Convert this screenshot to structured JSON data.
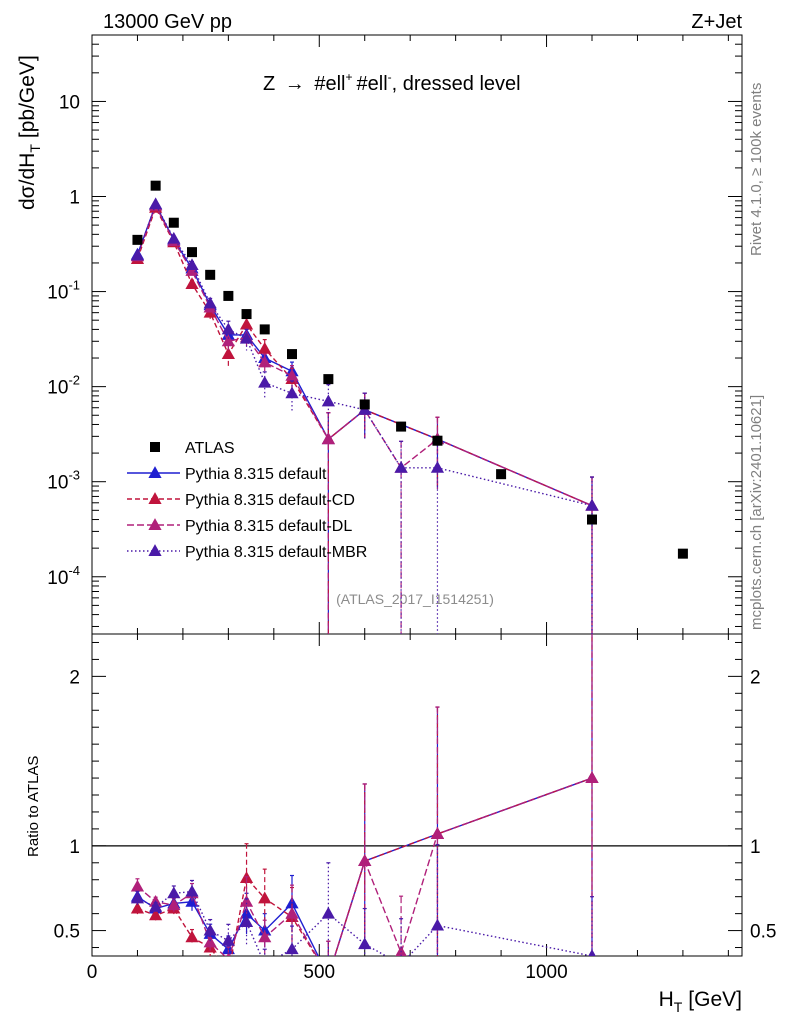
{
  "header": {
    "left": "13000 GeV pp",
    "right": "Z+Jet"
  },
  "side_labels": {
    "rivet": "Rivet 4.1.0, ≥ 100k events",
    "mcplots": "mcplots.cern.ch [arXiv:2401.10621]"
  },
  "chart_data": {
    "type": "scatter",
    "title": "Z → #ell+ #ell-, dressed level",
    "title_parts": {
      "z": "Z",
      "arrow": "→",
      "l1": "#ell",
      "s1": "+",
      "l2": "#ell",
      "s2": "-",
      "rest": ", dressed level"
    },
    "analysis_tag": "(ATLAS_2017_I1514251)",
    "xlabel": "H_T [GeV]",
    "xlabel_parts": {
      "h": "H",
      "sub": "T",
      "unit": "[GeV]"
    },
    "ylabel": "dσ/dH_T [pb/GeV]",
    "ylabel_parts": {
      "main": "dσ/dH",
      "sub": "T",
      "unit": "[pb/GeV]"
    },
    "ratio_ylabel": "Ratio to ATLAS",
    "xlim": [
      0,
      1430
    ],
    "ylim": [
      2.5e-05,
      50
    ],
    "ratio_ylim": [
      0.35,
      2.25
    ],
    "x_ticks": [
      0,
      500,
      1000
    ],
    "x_tick_labels": [
      "0",
      "500",
      "1000"
    ],
    "y_tick_labels": [
      {
        "base": "10",
        "exp": "-4"
      },
      {
        "base": "10",
        "exp": "-3"
      },
      {
        "base": "10",
        "exp": "-2"
      },
      {
        "base": "10",
        "exp": "-1"
      },
      {
        "base": "1",
        "exp": ""
      },
      {
        "base": "10",
        "exp": ""
      }
    ],
    "ratio_ticks": [
      0.5,
      1,
      2
    ],
    "ratio_tick_labels": [
      "0.5",
      "1",
      "2"
    ],
    "legend_position": "lower-left",
    "data": {
      "name": "ATLAS",
      "x": [
        100,
        140,
        180,
        220,
        260,
        300,
        340,
        380,
        440,
        520,
        600,
        680,
        760,
        900,
        1100,
        1300
      ],
      "y": [
        0.35,
        1.3,
        0.53,
        0.26,
        0.15,
        0.09,
        0.058,
        0.04,
        0.022,
        0.012,
        0.0065,
        0.0038,
        0.0027,
        0.0012,
        0.0004,
        0.000175
      ]
    },
    "series": [
      {
        "name": "Pythia 8.315 default",
        "color": "#1f1fd1",
        "dash": "",
        "x": [
          100,
          140,
          180,
          220,
          260,
          300,
          340,
          380,
          440,
          520,
          600,
          760,
          1100
        ],
        "y": [
          0.245,
          0.82,
          0.35,
          0.175,
          0.072,
          0.035,
          0.035,
          0.02,
          0.0145,
          0.0028,
          0.0057,
          0.0028,
          0.00056
        ],
        "err_frac": [
          0.06,
          0.04,
          0.06,
          0.08,
          0.12,
          0.2,
          0.2,
          0.2,
          0.25,
          0.9,
          0.5,
          0.7,
          1.0
        ],
        "ratio": [
          0.7,
          0.63,
          0.66,
          0.67,
          0.48,
          0.39,
          0.6,
          0.5,
          0.66,
          0.23,
          0.91,
          1.07,
          1.4
        ]
      },
      {
        "name": "Pythia 8.315 default-CD",
        "color": "#c0143c",
        "dash": "5,3",
        "x": [
          100,
          140,
          180,
          220,
          260,
          300,
          340,
          380,
          440,
          520,
          600,
          760,
          1100
        ],
        "y": [
          0.22,
          0.76,
          0.33,
          0.12,
          0.06,
          0.022,
          0.045,
          0.025,
          0.012,
          0.0028,
          0.0057,
          0.0028,
          0.00056
        ],
        "err_frac": [
          0.07,
          0.05,
          0.07,
          0.1,
          0.14,
          0.25,
          0.25,
          0.25,
          0.3,
          0.9,
          0.5,
          0.7,
          1.0
        ],
        "ratio": [
          0.63,
          0.59,
          0.63,
          0.46,
          0.4,
          0.25,
          0.81,
          0.69,
          0.58,
          0.23,
          0.91,
          1.07,
          1.4
        ]
      },
      {
        "name": "Pythia 8.315 default-DL",
        "color": "#b0207a",
        "dash": "7,3",
        "x": [
          100,
          140,
          180,
          220,
          260,
          300,
          340,
          380,
          440,
          520,
          600,
          680,
          760,
          1100
        ],
        "y": [
          0.235,
          0.8,
          0.34,
          0.165,
          0.068,
          0.03,
          0.033,
          0.018,
          0.013,
          0.0028,
          0.0057,
          0.0014,
          0.0028,
          0.00056
        ],
        "err_frac": [
          0.06,
          0.04,
          0.06,
          0.08,
          0.12,
          0.22,
          0.22,
          0.22,
          0.28,
          0.9,
          0.5,
          0.9,
          0.7,
          1.0
        ],
        "ratio": [
          0.76,
          0.67,
          0.65,
          0.72,
          0.43,
          0.33,
          0.67,
          0.46,
          0.6,
          0.23,
          0.91,
          0.37,
          1.07,
          1.4
        ]
      },
      {
        "name": "Pythia 8.315 default-MBR",
        "color": "#4a1aa8",
        "dash": "1.5,2.5",
        "x": [
          100,
          140,
          180,
          220,
          260,
          300,
          340,
          380,
          440,
          520,
          600,
          680,
          760,
          1100
        ],
        "y": [
          0.24,
          0.83,
          0.36,
          0.19,
          0.075,
          0.04,
          0.032,
          0.011,
          0.0085,
          0.007,
          0.0057,
          0.0014,
          0.0014,
          0.00056
        ],
        "err_frac": [
          0.06,
          0.04,
          0.06,
          0.09,
          0.13,
          0.22,
          0.25,
          0.3,
          0.35,
          0.5,
          0.5,
          0.9,
          0.9,
          1.0
        ],
        "ratio": [
          0.69,
          0.64,
          0.72,
          0.73,
          0.5,
          0.44,
          0.55,
          0.3,
          0.39,
          0.6,
          0.42,
          0.3,
          0.53,
          0.35
        ]
      }
    ]
  }
}
